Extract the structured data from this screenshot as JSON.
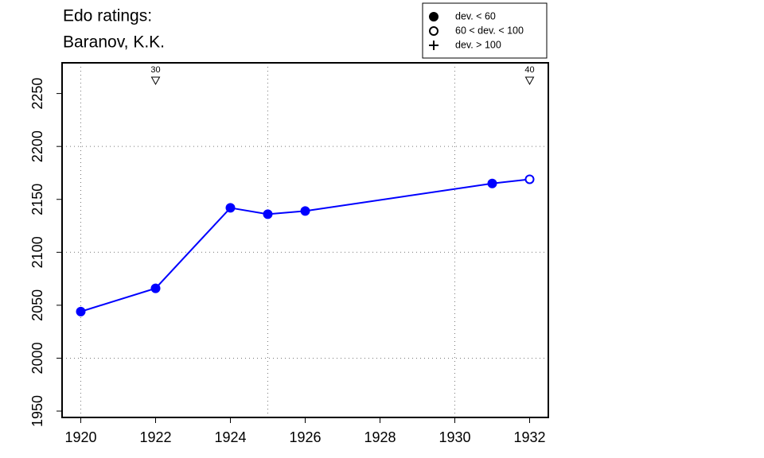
{
  "chart_data": {
    "type": "line",
    "title": "Edo ratings:",
    "subtitle": "Baranov, K.K.",
    "x": [
      1920,
      1922,
      1924,
      1925,
      1926,
      1931,
      1932
    ],
    "series": [
      {
        "color": "#0000ff",
        "values": [
          2044,
          2066,
          2142,
          2136,
          2139,
          2165,
          2169
        ],
        "markers": [
          "filled",
          "filled",
          "filled",
          "filled",
          "filled",
          "filled",
          "open"
        ]
      }
    ],
    "xlim": [
      1919.5,
      1932.5
    ],
    "ylim": [
      1944,
      2279
    ],
    "xticks": [
      1920,
      1922,
      1924,
      1926,
      1928,
      1930,
      1932
    ],
    "yticks": [
      1950,
      2000,
      2050,
      2100,
      2150,
      2200,
      2250
    ],
    "xgrid": [
      1920,
      1925,
      1930
    ],
    "ygrid": [
      2000,
      2100,
      2200
    ],
    "annotations": [
      {
        "x": 1922,
        "label": "30"
      },
      {
        "x": 1932,
        "label": "40"
      }
    ],
    "legend": {
      "position": "top-right",
      "entries": [
        {
          "label": "dev. < 60",
          "marker": "filled"
        },
        {
          "label": "60 < dev. < 100",
          "marker": "open"
        },
        {
          "label": "dev. > 100",
          "marker": "plus"
        }
      ]
    }
  }
}
